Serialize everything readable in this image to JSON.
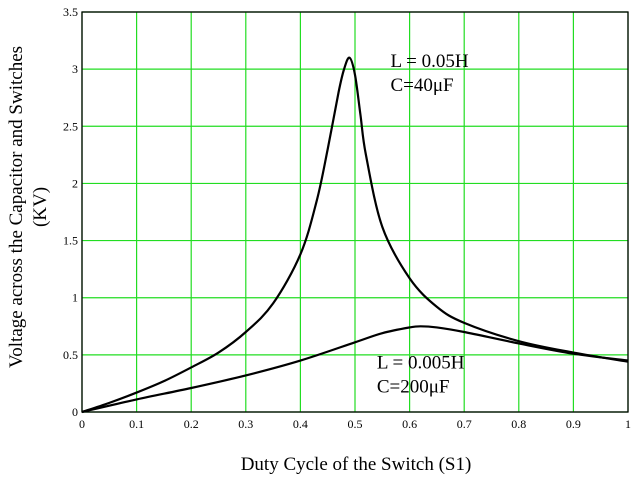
{
  "chart_data": {
    "type": "line",
    "title": "",
    "xlabel": "Duty Cycle of the Switch (S1)",
    "ylabel_line1": "Voltage across the Capacitor and Switches",
    "ylabel_line2": "(KV)",
    "xlim": [
      0,
      1
    ],
    "ylim": [
      0,
      3.5
    ],
    "x_ticks": [
      0,
      0.1,
      0.2,
      0.3,
      0.4,
      0.5,
      0.6,
      0.7,
      0.8,
      0.9,
      1
    ],
    "x_tick_labels": [
      "0",
      "0.1",
      "0.2",
      "0.3",
      "0.4",
      "0.5",
      "0.6",
      "0.7",
      "0.8",
      "0.9",
      "1"
    ],
    "y_ticks": [
      0,
      0.5,
      1,
      1.5,
      2,
      2.5,
      3,
      3.5
    ],
    "y_tick_labels": [
      "0",
      "0.5",
      "1",
      "1.5",
      "2",
      "2.5",
      "3",
      "3.5"
    ],
    "grid": true,
    "grid_color": "#22dd22",
    "line_color": "#000000",
    "series": [
      {
        "x": [
          0,
          0.05,
          0.1,
          0.15,
          0.2,
          0.25,
          0.3,
          0.35,
          0.4,
          0.43,
          0.45,
          0.47,
          0.48,
          0.49,
          0.5,
          0.51,
          0.52,
          0.55,
          0.6,
          0.65,
          0.7,
          0.8,
          0.9,
          1.0
        ],
        "y": [
          0,
          0.08,
          0.17,
          0.27,
          0.39,
          0.52,
          0.7,
          0.95,
          1.38,
          1.85,
          2.3,
          2.8,
          3.0,
          3.1,
          2.95,
          2.6,
          2.25,
          1.62,
          1.17,
          0.92,
          0.78,
          0.62,
          0.52,
          0.44
        ]
      },
      {
        "x": [
          0,
          0.1,
          0.2,
          0.3,
          0.4,
          0.5,
          0.55,
          0.6,
          0.62,
          0.65,
          0.7,
          0.8,
          0.9,
          1.0
        ],
        "y": [
          0,
          0.11,
          0.21,
          0.32,
          0.45,
          0.61,
          0.69,
          0.74,
          0.75,
          0.74,
          0.7,
          0.6,
          0.51,
          0.45
        ]
      }
    ],
    "annotations": [
      {
        "line1": "L = 0.05H",
        "line2": "C=40μF",
        "x": 0.565,
        "y": 3.02
      },
      {
        "line1": "L = 0.005H",
        "line2": "C=200μF",
        "x": 0.54,
        "y": 0.38
      }
    ]
  }
}
